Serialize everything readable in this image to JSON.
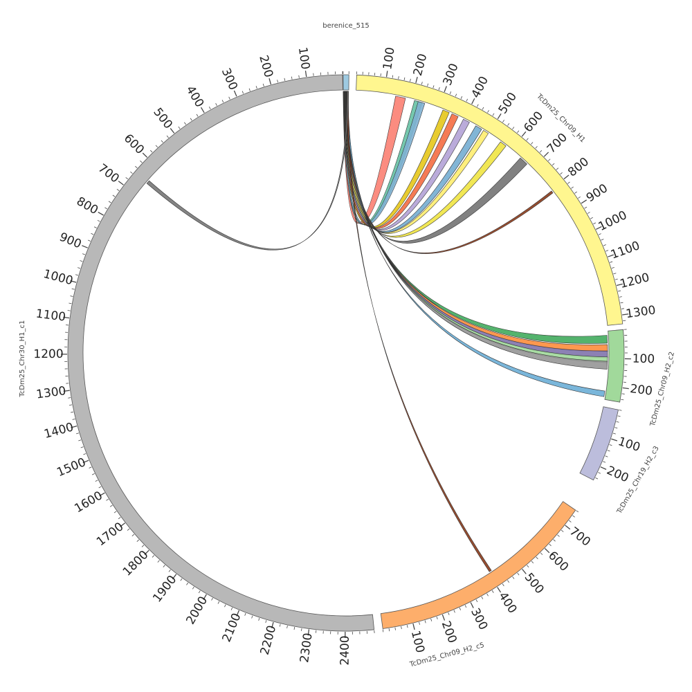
{
  "chart_data": {
    "type": "chord",
    "segments": [
      {
        "name": "berenice_515",
        "length": 20,
        "color": "#9ecae1",
        "ticks": []
      },
      {
        "name": "TcDm25_Chr09_H1",
        "length": 1330,
        "color": "#fff68f",
        "ticks": [
          "100",
          "200",
          "300",
          "400",
          "500",
          "600",
          "700",
          "800",
          "900",
          "1000",
          "1100",
          "1200",
          "1300"
        ]
      },
      {
        "name": "TcDm25_Chr09_H2_c2",
        "length": 250,
        "color": "#a1d99b",
        "ticks": [
          "100",
          "200"
        ]
      },
      {
        "name": "TcDm25_Chr19_H2_c3",
        "length": 250,
        "color": "#bcbddc",
        "ticks": [
          "100",
          "200"
        ]
      },
      {
        "name": "TcDm25_Chr09_H2_c5",
        "length": 760,
        "color": "#fdae6b",
        "ticks": [
          "100",
          "200",
          "300",
          "400",
          "500",
          "600",
          "700"
        ]
      },
      {
        "name": "TcDm25_Chr30_H1_c1",
        "length": 2480,
        "color": "#b8b8b8",
        "ticks": [
          "100",
          "200",
          "300",
          "400",
          "500",
          "600",
          "700",
          "800",
          "900",
          "1000",
          "1100",
          "1200",
          "1300",
          "1400",
          "1500",
          "1600",
          "1700",
          "1800",
          "1900",
          "2000",
          "2100",
          "2200",
          "2300",
          "2400"
        ]
      }
    ],
    "links": [
      {
        "target": "TcDm25_Chr09_H1",
        "pos": 160,
        "width": 8,
        "color": "#fb8072"
      },
      {
        "target": "TcDm25_Chr09_H1",
        "pos": 225,
        "width": 6,
        "color": "#66c2a5"
      },
      {
        "target": "TcDm25_Chr09_H1",
        "pos": 237,
        "width": 5,
        "color": "#80b1d3"
      },
      {
        "target": "TcDm25_Chr09_H1",
        "pos": 330,
        "width": 5,
        "color": "#e6c619"
      },
      {
        "target": "TcDm25_Chr09_H1",
        "pos": 365,
        "width": 5,
        "color": "#f46d43"
      },
      {
        "target": "TcDm25_Chr09_H1",
        "pos": 410,
        "width": 5,
        "color": "#b3a2d6"
      },
      {
        "target": "TcDm25_Chr09_H1",
        "pos": 460,
        "width": 5,
        "color": "#74add1"
      },
      {
        "target": "TcDm25_Chr09_H1",
        "pos": 490,
        "width": 4,
        "color": "#ffed6f"
      },
      {
        "target": "TcDm25_Chr09_H1",
        "pos": 565,
        "width": 5,
        "color": "#f0e442"
      },
      {
        "target": "TcDm25_Chr09_H1",
        "pos": 660,
        "width": 7,
        "color": "#737373"
      },
      {
        "target": "TcDm25_Chr09_H1",
        "pos": 810,
        "width": 1,
        "color": "#8b3a1a"
      },
      {
        "target": "TcDm25_Chr09_H2_c2",
        "pos": 30,
        "width": 6,
        "color": "#41ab5d"
      },
      {
        "target": "TcDm25_Chr09_H2_c2",
        "pos": 62,
        "width": 5,
        "color": "#fd8d3c"
      },
      {
        "target": "TcDm25_Chr09_H2_c2",
        "pos": 85,
        "width": 5,
        "color": "#8073ac"
      },
      {
        "target": "TcDm25_Chr09_H2_c2",
        "pos": 105,
        "width": 4,
        "color": "#a1d99b"
      },
      {
        "target": "TcDm25_Chr09_H2_c2",
        "pos": 125,
        "width": 6,
        "color": "#969696"
      },
      {
        "target": "TcDm25_Chr09_H2_c2",
        "pos": 230,
        "width": 4,
        "color": "#6baed6"
      },
      {
        "target": "TcDm25_Chr09_H2_c5",
        "pos": 410,
        "width": 1,
        "color": "#8b3a1a"
      },
      {
        "target": "TcDm25_Chr30_H1_c1",
        "pos": 650,
        "width": 2,
        "color": "#777777"
      }
    ]
  }
}
